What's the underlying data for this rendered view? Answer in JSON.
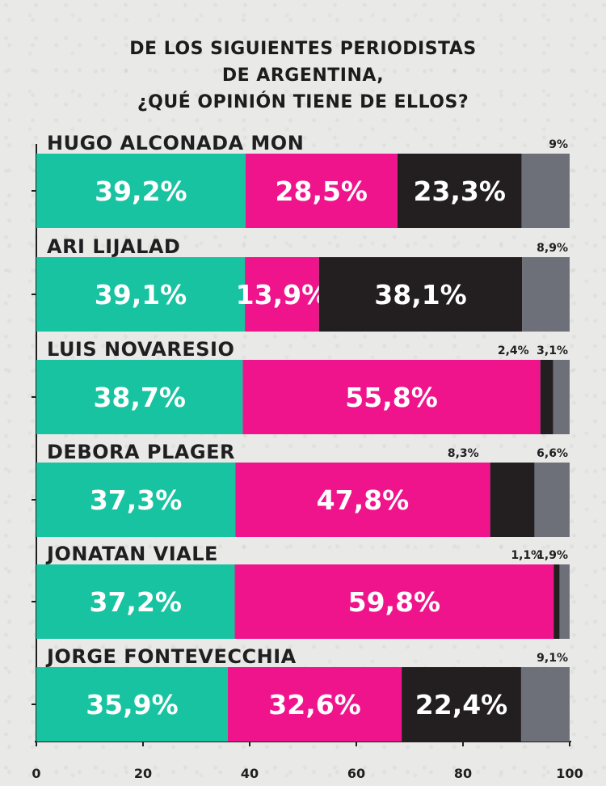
{
  "title_lines": [
    "DE LOS SIGUIENTES PERIODISTAS",
    "DE ARGENTINA,",
    "¿QUÉ OPINIÓN TIENE DE ELLOS?"
  ],
  "chart_data": {
    "type": "bar",
    "orientation": "horizontal",
    "stacked": true,
    "title": "DE LOS SIGUIENTES PERIODISTAS DE ARGENTINA, ¿QUÉ OPINIÓN TIENE DE ELLOS?",
    "categories": [
      "HUGO ALCONADA MON",
      "ARI LIJALAD",
      "LUIS NOVARESIO",
      "DEBORA PLAGER",
      "JONATAN VIALE",
      "JORGE FONTEVECCHIA"
    ],
    "series": [
      {
        "color": "#17c3a0",
        "values": [
          39.2,
          39.1,
          38.7,
          37.3,
          37.2,
          35.9
        ],
        "labels": [
          "39,2%",
          "39,1%",
          "38,7%",
          "37,3%",
          "37,2%",
          "35,9%"
        ]
      },
      {
        "color": "#f0148c",
        "values": [
          28.5,
          13.9,
          55.8,
          47.8,
          59.8,
          32.6
        ],
        "labels": [
          "28,5%",
          "13,9%",
          "55,8%",
          "47,8%",
          "59,8%",
          "32,6%"
        ]
      },
      {
        "color": "#231f20",
        "values": [
          23.3,
          38.1,
          2.4,
          8.3,
          1.1,
          22.4
        ],
        "labels": [
          "23,3%",
          "38,1%",
          "2,4%",
          "8,3%",
          "1,1%",
          "22,4%"
        ]
      },
      {
        "color": "#6e7079",
        "values": [
          9,
          8.9,
          3.1,
          6.6,
          1.9,
          9.1
        ],
        "labels": [
          "9%",
          "8,9%",
          "3,1%",
          "6,6%",
          "1,9%",
          "9,1%"
        ]
      }
    ],
    "xlim": [
      0,
      100
    ],
    "xticks": [
      0,
      20,
      40,
      60,
      80,
      100
    ],
    "grid": false,
    "legend": "none"
  }
}
